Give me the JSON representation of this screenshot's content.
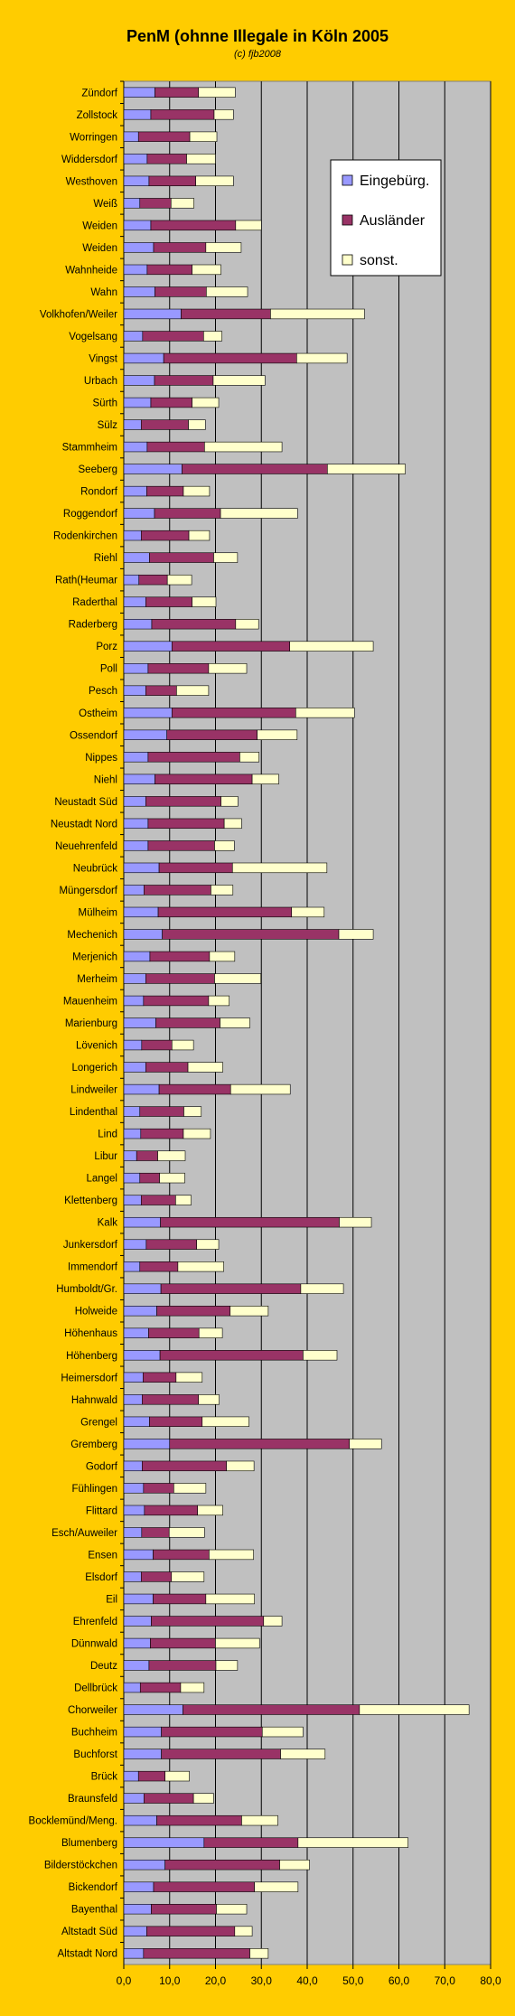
{
  "chart_data": {
    "type": "bar",
    "stacked": true,
    "orientation": "horizontal",
    "title": "PenM (ohnne Illegale in Köln 2005",
    "subtitle": "(c) fjb2008",
    "xlim": [
      0,
      80
    ],
    "xticks": [
      "0,0",
      "10,0",
      "20,0",
      "30,0",
      "40,0",
      "50,0",
      "60,0",
      "70,0",
      "80,0"
    ],
    "grid": true,
    "legend_position": "top-right",
    "colors": {
      "background": "#ffcc00",
      "plot": "#c0c0c0",
      "Eingebürg.": "#9999ff",
      "Ausländer": "#993366",
      "sonst.": "#ffffcc",
      "grid": "#000000"
    },
    "categories": [
      "Zündorf",
      "Zollstock",
      "Worringen",
      "Widdersdorf",
      "Westhoven",
      "Weiß",
      "Weiden",
      "Weiden",
      "Wahnheide",
      "Wahn",
      "Volkhofen/Weiler",
      "Vogelsang",
      "Vingst",
      "Urbach",
      "Sürth",
      "Sülz",
      "Stammheim",
      "Seeberg",
      "Rondorf",
      "Roggendorf",
      "Rodenkirchen",
      "Riehl",
      "Rath(Heumar",
      "Raderthal",
      "Raderberg",
      "Porz",
      "Poll",
      "Pesch",
      "Ostheim",
      "Ossendorf",
      "Nippes",
      "Niehl",
      "Neustadt Süd",
      "Neustadt Nord",
      "Neuehrenfeld",
      "Neubrück",
      "Müngersdorf",
      "Mülheim",
      "Mechenich",
      "Merjenich",
      "Merheim",
      "Mauenheim",
      "Marienburg",
      "Lövenich",
      "Longerich",
      "Lindweiler",
      "Lindenthal",
      "Lind",
      "Libur",
      "Langel",
      "Klettenberg",
      "Kalk",
      "Junkersdorf",
      "Immendorf",
      "Humboldt/Gr.",
      "Holweide",
      "Höhenhaus",
      "Höhenberg",
      "Heimersdorf",
      "Hahnwald",
      "Grengel",
      "Gremberg",
      "Godorf",
      "Fühlingen",
      "Flittard",
      "Esch/Auweiler",
      "Ensen",
      "Elsdorf",
      "Eil",
      "Ehrenfeld",
      "Dünnwald",
      "Deutz",
      "Dellbrück",
      "Chorweiler",
      "Buchheim",
      "Buchforst",
      "Brück",
      "Braunsfeld",
      "Bocklemünd/Meng.",
      "Blumenberg",
      "Bilderstöckchen",
      "Bickendorf",
      "Bayenthal",
      "Altstadt Süd",
      "Altstadt Nord"
    ],
    "series": [
      {
        "name": "Eingebürg.",
        "values": [
          6.8,
          5.9,
          3.2,
          5.1,
          5.5,
          3.5,
          5.9,
          6.5,
          5.1,
          6.8,
          12.5,
          4.1,
          8.7,
          6.7,
          5.9,
          3.8,
          5.1,
          12.7,
          5.0,
          6.7,
          3.8,
          5.6,
          3.3,
          4.8,
          6.1,
          10.5,
          5.3,
          4.8,
          10.5,
          9.4,
          5.3,
          6.8,
          4.8,
          5.3,
          5.3,
          7.7,
          4.4,
          7.5,
          8.4,
          5.7,
          4.8,
          4.3,
          7.0,
          3.9,
          4.8,
          7.7,
          3.5,
          3.7,
          2.8,
          3.5,
          3.8,
          8.0,
          4.9,
          3.5,
          8.1,
          7.2,
          5.4,
          7.9,
          4.2,
          4.0,
          5.6,
          10.0,
          4.0,
          4.3,
          4.5,
          3.9,
          6.4,
          3.8,
          6.4,
          6.0,
          5.8,
          5.5,
          3.6,
          12.9,
          8.2,
          8.2,
          3.2,
          4.4,
          7.2,
          17.5,
          9.0,
          6.5,
          6.0,
          5.0,
          4.3
        ]
      },
      {
        "name": "Ausländer",
        "values": [
          9.5,
          13.8,
          11.2,
          8.6,
          10.2,
          6.8,
          18.5,
          11.4,
          9.8,
          11.2,
          19.5,
          13.3,
          29.0,
          12.8,
          9.0,
          10.3,
          12.5,
          31.7,
          8.0,
          14.4,
          10.4,
          14.0,
          6.2,
          10.1,
          18.3,
          25.7,
          13.2,
          6.7,
          27.0,
          19.7,
          20.0,
          21.2,
          16.4,
          16.6,
          14.5,
          16.0,
          14.6,
          29.1,
          38.5,
          13.0,
          15.0,
          14.2,
          14.0,
          6.6,
          9.2,
          15.6,
          9.6,
          9.3,
          4.6,
          4.3,
          7.5,
          39.0,
          11.0,
          8.3,
          30.5,
          16.0,
          11.0,
          31.2,
          7.2,
          12.3,
          11.5,
          39.2,
          18.4,
          6.6,
          11.6,
          6.0,
          12.2,
          6.6,
          11.5,
          24.5,
          14.2,
          14.6,
          8.8,
          38.5,
          22.0,
          26.0,
          5.8,
          10.8,
          18.5,
          20.5,
          25.0,
          22.0,
          14.2,
          19.2,
          23.2
        ]
      },
      {
        "name": "sonst.",
        "values": [
          8.0,
          4.2,
          5.9,
          6.3,
          8.2,
          5.0,
          5.6,
          7.7,
          6.3,
          9.0,
          20.5,
          4.0,
          11.0,
          11.3,
          5.8,
          3.7,
          16.9,
          17.0,
          5.7,
          16.8,
          4.5,
          5.2,
          5.3,
          5.2,
          5.0,
          18.2,
          8.3,
          7.0,
          12.8,
          8.7,
          4.2,
          5.8,
          3.7,
          3.8,
          4.3,
          20.6,
          4.8,
          7.1,
          7.5,
          5.5,
          10.1,
          4.5,
          6.5,
          4.7,
          7.6,
          13.0,
          3.8,
          5.9,
          6.0,
          5.5,
          3.4,
          7.0,
          4.8,
          10.0,
          9.3,
          8.3,
          5.1,
          7.4,
          5.7,
          4.5,
          10.2,
          7.0,
          6.0,
          7.0,
          5.5,
          7.7,
          9.7,
          7.1,
          10.6,
          4.0,
          9.6,
          4.7,
          5.1,
          23.9,
          8.9,
          9.7,
          5.3,
          4.4,
          7.9,
          24.0,
          6.5,
          9.5,
          6.6,
          3.8,
          4.0
        ]
      }
    ]
  }
}
